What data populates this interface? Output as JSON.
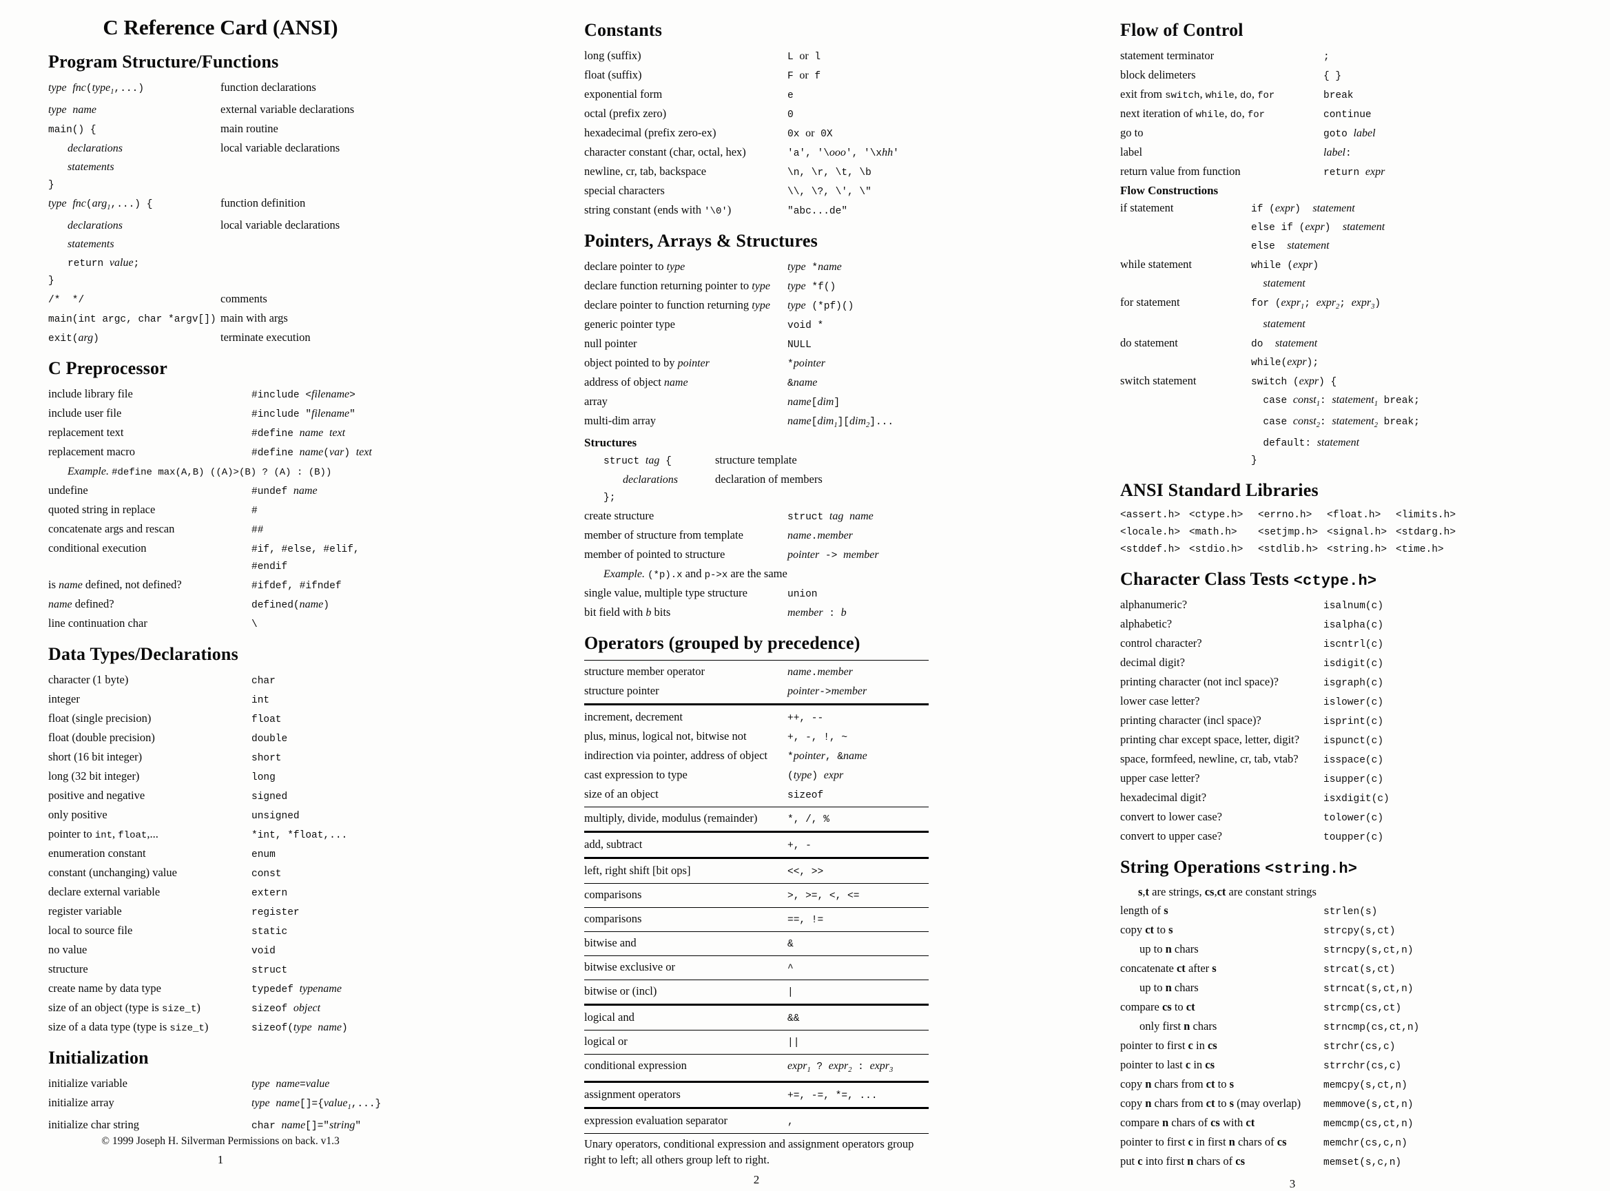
{
  "columns": [
    {
      "page_number": "1",
      "title": "C Reference Card (ANSI)",
      "footer": "© 1999 Joseph H. Silverman Permissions on back. v1.3",
      "sections": [
        {
          "heading": "Program Structure/Functions",
          "w": "w50",
          "lcls": "c",
          "rcls": "d",
          "rows": [
            {
              "l": "{i:type} {i:fnc}({i:type}{s:1},...)",
              "r": "function declarations"
            },
            {
              "l": "{i:type} {i:name}",
              "r": "external variable declarations"
            },
            {
              "l": "main() {",
              "r": "main routine"
            },
            {
              "l": "{i:declarations}",
              "ind": 1,
              "r": "local variable declarations"
            },
            {
              "l": "{i:statements}",
              "ind": 1
            },
            {
              "l": "}"
            },
            {
              "l": "{i:type} {i:fnc}({i:arg}{s:1},...) {",
              "r": "function definition"
            },
            {
              "l": "{i:declarations}",
              "ind": 1,
              "r": "local variable declarations"
            },
            {
              "l": "{i:statements}",
              "ind": 1
            },
            {
              "l": "return {i:value};",
              "ind": 1
            },
            {
              "l": "}"
            },
            {
              "l": "/*  */",
              "r": "comments"
            },
            {
              "l": "main(int argc, char *argv[])",
              "r": "main with args"
            },
            {
              "l": "exit({i:arg})",
              "r": "terminate execution"
            }
          ]
        },
        {
          "heading": "C Preprocessor",
          "rows": [
            {
              "l": "include library file",
              "r": "#include <{i:filename}>"
            },
            {
              "l": "include user file",
              "r": "#include \"{i:filename}\""
            },
            {
              "l": "replacement text",
              "r": "#define {i:name} {i:text}"
            },
            {
              "l": "replacement macro",
              "r": "#define {i:name}({i:var}) {i:text}"
            },
            {
              "span": "{i:Example.} {m:#define max(A,B) ((A)>(B) ? (A) : (B))}",
              "ind": 1
            },
            {
              "l": "undefine",
              "r": "#undef {i:name}"
            },
            {
              "l": "quoted string in replace",
              "r": "#"
            },
            {
              "l": "concatenate args and rescan",
              "r": "##"
            },
            {
              "l": "conditional execution",
              "r": "#if, #else, #elif, #endif"
            },
            {
              "l": "is {i:name} defined, not defined?",
              "r": "#ifdef, #ifndef"
            },
            {
              "l": "{i:name} defined?",
              "r": "defined({i:name})"
            },
            {
              "l": "line continuation char",
              "r": "\\"
            }
          ]
        },
        {
          "heading": "Data Types/Declarations",
          "rows": [
            {
              "l": "character (1 byte)",
              "r": "char"
            },
            {
              "l": "integer",
              "r": "int"
            },
            {
              "l": "float (single precision)",
              "r": "float"
            },
            {
              "l": "float (double precision)",
              "r": "double"
            },
            {
              "l": "short (16 bit integer)",
              "r": "short"
            },
            {
              "l": "long (32 bit integer)",
              "r": "long"
            },
            {
              "l": "positive and negative",
              "r": "signed"
            },
            {
              "l": "only positive",
              "r": "unsigned"
            },
            {
              "l": "pointer to {m:int}, {m:float},...",
              "r": "*int, *float,..."
            },
            {
              "l": "enumeration constant",
              "r": "enum"
            },
            {
              "l": "constant (unchanging) value",
              "r": "const"
            },
            {
              "l": "declare external variable",
              "r": "extern"
            },
            {
              "l": "register variable",
              "r": "register"
            },
            {
              "l": "local to source file",
              "r": "static"
            },
            {
              "l": "no value",
              "r": "void"
            },
            {
              "l": "structure",
              "r": "struct"
            },
            {
              "l": "create name by data type",
              "r": "typedef {i:typename}"
            },
            {
              "l": "size of an object (type is {m:size_t})",
              "r": "sizeof {i:object}"
            },
            {
              "l": "size of a data type (type is {m:size_t})",
              "r": "sizeof({i:type} {i:name})"
            }
          ]
        },
        {
          "heading": "Initialization",
          "rows": [
            {
              "l": "initialize variable",
              "r": "{i:type} {i:name}={i:value}"
            },
            {
              "l": "initialize array",
              "r": "{i:type} {i:name}[]={{i:value}{s:1},...}"
            },
            {
              "l": "initialize char string",
              "r": "char {i:name}[]=\"{i:string}\""
            }
          ]
        }
      ]
    },
    {
      "page_number": "2",
      "sections": [
        {
          "heading": "Constants",
          "rows": [
            {
              "l": "long (suffix)",
              "r": "L {r:or} l"
            },
            {
              "l": "float (suffix)",
              "r": "F {r:or} f"
            },
            {
              "l": "exponential form",
              "r": "e"
            },
            {
              "l": "octal (prefix zero)",
              "r": "0"
            },
            {
              "l": "hexadecimal (prefix zero-ex)",
              "r": "0x {r:or} 0X"
            },
            {
              "l": "character constant (char, octal, hex)",
              "r": "'a', '\\{i:ooo}', '\\x{i:hh}'"
            },
            {
              "l": "newline, cr, tab, backspace",
              "r": "\\n, \\r, \\t, \\b"
            },
            {
              "l": "special characters",
              "r": "\\\\, \\?, \\', \\\""
            },
            {
              "l": "string constant (ends with {m:'\\0'})",
              "r": "\"abc...de\""
            }
          ]
        },
        {
          "heading": "Pointers, Arrays & Structures",
          "rows": [
            {
              "l": "declare pointer to {i:type}",
              "r": "{i:type} *{i:name}"
            },
            {
              "l": "declare function returning pointer to {i:type}",
              "r": "{i:type} *f()"
            },
            {
              "l": "declare pointer to function returning {i:type}",
              "r": "{i:type} (*pf)()"
            },
            {
              "l": "generic pointer type",
              "r": "void *"
            },
            {
              "l": "null pointer",
              "r": "NULL"
            },
            {
              "l": "object pointed to by {i:pointer}",
              "r": "*{i:pointer}"
            },
            {
              "l": "address of object {i:name}",
              "r": "&{i:name}"
            },
            {
              "l": "array",
              "r": "{i:name}[{i:dim}]"
            },
            {
              "l": "multi-dim array",
              "r": "{i:name}[{i:dim}{s:1}][{i:dim}{s:2}]..."
            },
            {
              "subhead": "Structures"
            },
            {
              "l": "struct {i:tag} {",
              "r": "structure template",
              "lcls": "c",
              "rcls": "d",
              "ind": 1,
              "w": "w38"
            },
            {
              "l": "{i:declarations}",
              "r": "declaration of members",
              "lcls": "c",
              "rcls": "d",
              "ind": 2,
              "w": "w38"
            },
            {
              "l": "};",
              "lcls": "c",
              "rcls": "d",
              "ind": 1,
              "w": "w38"
            },
            {
              "l": "create structure",
              "r": "struct {i:tag} {i:name}"
            },
            {
              "l": "member of structure from template",
              "r": "{i:name}.{i:member}"
            },
            {
              "l": "member of pointed to structure",
              "r": "{i:pointer} -> {i:member}"
            },
            {
              "span": "{i:Example.} {m:(*p).x} and {m:p->x} are the same",
              "ind": 1
            },
            {
              "l": "single value, multiple type structure",
              "r": "union"
            },
            {
              "l": "bit field with {i:b} bits",
              "r": "{i:member} : {i:b}"
            }
          ]
        },
        {
          "heading": "Operators (grouped by precedence)",
          "rows": [
            {
              "rule": "thin"
            },
            {
              "l": "structure member operator",
              "r": "{i:name}.{i:member}"
            },
            {
              "l": "structure pointer",
              "r": "{i:pointer}->{i:member}"
            },
            {
              "rule": "thick"
            },
            {
              "l": "increment, decrement",
              "r": "++, --"
            },
            {
              "l": "plus, minus, logical not, bitwise not",
              "r": "+, -, !, ~"
            },
            {
              "l": "indirection via pointer, address of object",
              "r": "*{i:pointer}, &{i:name}"
            },
            {
              "l": "cast expression to type",
              "r": "({i:type}) {i:expr}"
            },
            {
              "l": "size of an object",
              "r": "sizeof"
            },
            {
              "rule": "thin"
            },
            {
              "l": "multiply, divide, modulus (remainder)",
              "r": "*, /, %"
            },
            {
              "rule": "thick"
            },
            {
              "l": "add, subtract",
              "r": "+, -"
            },
            {
              "rule": "thick"
            },
            {
              "l": "left, right shift [bit ops]",
              "r": "<<, >>"
            },
            {
              "rule": "thin"
            },
            {
              "l": "comparisons",
              "r": ">, >=, <, <="
            },
            {
              "rule": "thin"
            },
            {
              "l": "comparisons",
              "r": "==, !="
            },
            {
              "rule": "thin"
            },
            {
              "l": "bitwise and",
              "r": "&"
            },
            {
              "rule": "thin"
            },
            {
              "l": "bitwise exclusive or",
              "r": "^"
            },
            {
              "rule": "thin"
            },
            {
              "l": "bitwise or (incl)",
              "r": "|"
            },
            {
              "rule": "thick"
            },
            {
              "l": "logical and",
              "r": "&&"
            },
            {
              "rule": "thin"
            },
            {
              "l": "logical or",
              "r": "||"
            },
            {
              "rule": "thin"
            },
            {
              "l": "conditional expression",
              "r": "{i:expr}{s:1} ? {i:expr}{s:2} : {i:expr}{s:3}"
            },
            {
              "rule": "thick"
            },
            {
              "l": "assignment operators",
              "r": "+=, -=, *=, ..."
            },
            {
              "rule": "thick"
            },
            {
              "l": "expression evaluation separator",
              "r": ","
            },
            {
              "rule": "thin"
            },
            {
              "span": "Unary operators, conditional expression and assignment operators group right to left; all others group left to right.",
              "cls": "note"
            }
          ]
        }
      ]
    },
    {
      "page_number": "3",
      "sections": [
        {
          "heading": "Flow of Control",
          "rows": [
            {
              "l": "statement terminator",
              "r": ";"
            },
            {
              "l": "block delimeters",
              "r": "{ }"
            },
            {
              "l": "exit from {m:switch}, {m:while}, {m:do}, {m:for}",
              "r": "break"
            },
            {
              "l": "next iteration of {m:while}, {m:do}, {m:for}",
              "r": "continue"
            },
            {
              "l": "go to",
              "r": "goto {i:label}"
            },
            {
              "l": "label",
              "r": "{i:label}:"
            },
            {
              "l": "return value from function",
              "r": "return {i:expr}"
            },
            {
              "subhead": "Flow Constructions"
            },
            {
              "l": "if statement",
              "w": "w38",
              "r": "if ({i:expr})  {i:statement}\nelse if ({i:expr})  {i:statement}\nelse  {i:statement}"
            },
            {
              "l": "while statement",
              "w": "w38",
              "r": "while ({i:expr})\n  {i:statement}"
            },
            {
              "l": "for statement",
              "w": "w38",
              "r": "for ({i:expr}{s:1}; {i:expr}{s:2}; {i:expr}{s:3})\n  {i:statement}"
            },
            {
              "l": "do statement",
              "w": "w38",
              "r": "do  {i:statement}\nwhile({i:expr});"
            },
            {
              "l": "switch statement",
              "w": "w38",
              "r": "switch ({i:expr}) {\n  case {i:const}{s:1}: {i:statement}{s:1} break;\n  case {i:const}{s:2}: {i:statement}{s:2} break;\n  default: {i:statement}\n}"
            }
          ]
        },
        {
          "heading": "ANSI Standard Libraries",
          "rows": [
            {
              "cells": [
                "<assert.h>",
                "<ctype.h>",
                "<errno.h>",
                "<float.h>",
                "<limits.h>"
              ]
            },
            {
              "cells": [
                "<locale.h>",
                "<math.h>",
                "<setjmp.h>",
                "<signal.h>",
                "<stdarg.h>"
              ]
            },
            {
              "cells": [
                "<stddef.h>",
                "<stdio.h>",
                "<stdlib.h>",
                "<string.h>",
                "<time.h>"
              ]
            }
          ]
        },
        {
          "heading": "Character Class Tests",
          "heading_code": "<ctype.h>",
          "rows": [
            {
              "l": "alphanumeric?",
              "r": "isalnum(c)"
            },
            {
              "l": "alphabetic?",
              "r": "isalpha(c)"
            },
            {
              "l": "control character?",
              "r": "iscntrl(c)"
            },
            {
              "l": "decimal digit?",
              "r": "isdigit(c)"
            },
            {
              "l": "printing character (not incl space)?",
              "r": "isgraph(c)"
            },
            {
              "l": "lower case letter?",
              "r": "islower(c)"
            },
            {
              "l": "printing character (incl space)?",
              "r": "isprint(c)"
            },
            {
              "l": "printing char except space, letter, digit?",
              "r": "ispunct(c)"
            },
            {
              "l": "space, formfeed, newline, cr, tab, vtab?",
              "r": "isspace(c)"
            },
            {
              "l": "upper case letter?",
              "r": "isupper(c)"
            },
            {
              "l": "hexadecimal digit?",
              "r": "isxdigit(c)"
            },
            {
              "l": "convert to lower case?",
              "r": "tolower(c)"
            },
            {
              "l": "convert to upper case?",
              "r": "toupper(c)"
            }
          ]
        },
        {
          "heading": "String Operations",
          "heading_code": "<string.h>",
          "note": "{b:s},{b:t} are strings, {b:cs},{b:ct} are constant strings",
          "rows": [
            {
              "l": "length of {b:s}",
              "r": "strlen(s)"
            },
            {
              "l": "copy {b:ct} to {b:s}",
              "r": "strcpy(s,ct)"
            },
            {
              "l": "up to {b:n} chars",
              "ind": 1,
              "r": "strncpy(s,ct,n)"
            },
            {
              "l": "concatenate {b:ct} after {b:s}",
              "r": "strcat(s,ct)"
            },
            {
              "l": "up to {b:n} chars",
              "ind": 1,
              "r": "strncat(s,ct,n)"
            },
            {
              "l": "compare {b:cs} to {b:ct}",
              "r": "strcmp(cs,ct)"
            },
            {
              "l": "only first {b:n} chars",
              "ind": 1,
              "r": "strncmp(cs,ct,n)"
            },
            {
              "l": "pointer to first {b:c} in {b:cs}",
              "r": "strchr(cs,c)"
            },
            {
              "l": "pointer to last {b:c} in {b:cs}",
              "r": "strrchr(cs,c)"
            },
            {
              "l": "copy {b:n} chars from {b:ct} to {b:s}",
              "r": "memcpy(s,ct,n)"
            },
            {
              "l": "copy {b:n} chars from {b:ct} to {b:s} (may overlap)",
              "r": "memmove(s,ct,n)"
            },
            {
              "l": "compare {b:n} chars of {b:cs} with {b:ct}",
              "r": "memcmp(cs,ct,n)"
            },
            {
              "l": "pointer to first {b:c} in first {b:n} chars of {b:cs}",
              "r": "memchr(cs,c,n)"
            },
            {
              "l": "put {b:c} into first {b:n} chars of {b:cs}",
              "r": "memset(s,c,n)"
            }
          ]
        }
      ]
    }
  ]
}
